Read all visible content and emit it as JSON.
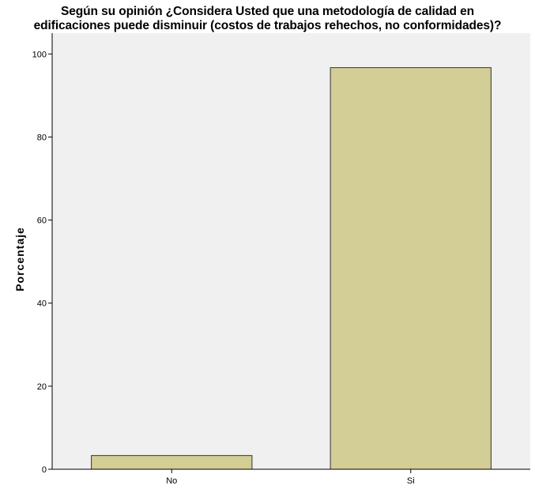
{
  "chart_data": {
    "type": "bar",
    "title_lines": [
      "Según su opinión ¿Considera Usted que una metodología de calidad en",
      "edificaciones puede disminuir (costos de trabajos rehechos, no conformidades)?"
    ],
    "xlabel": "",
    "ylabel": "Porcentaje",
    "categories": [
      "No",
      "Si"
    ],
    "values": [
      3.3,
      96.7
    ],
    "ylim": [
      0,
      105
    ],
    "yticks": [
      0,
      20,
      40,
      60,
      80,
      100
    ],
    "grid": false,
    "colors": {
      "bar_fill": "#d3cd96",
      "bar_stroke": "#333333",
      "plot_background": "#f0f0f0"
    }
  }
}
